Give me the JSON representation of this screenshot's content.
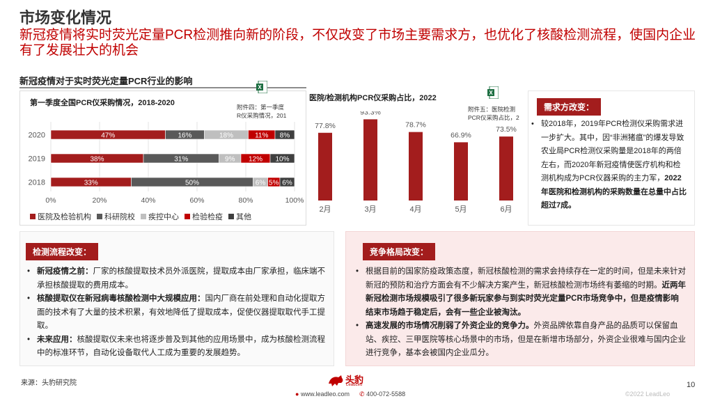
{
  "page": {
    "title": "市场变化情况",
    "subtitle": "新冠疫情将实时荧光定量PCR检测推向新的阶段，不仅改变了市场主要需求方，也优化了核酸检测流程，使国内企业有了发展壮大的机会",
    "section_title": "新冠疫情对于实时荧光定量PCR行业的影响",
    "page_number": "10"
  },
  "chart_left_title": "第一季度全国PCR仪采购情况，2018-2020",
  "chart_right_title": "医院/检测机构PCR仪采购占比，2022",
  "attachments": {
    "left": {
      "line1": "附件四：第一季度",
      "line2": "R仪采购情况，201"
    },
    "right": {
      "line1": "附件五：医院检测",
      "line2": "PCR仪采购占比，2"
    }
  },
  "colors": {
    "accent": "#a31d1d",
    "hospital": "#a31d1d",
    "research": "#595959",
    "cdc": "#bfbfbf",
    "inspection": "#c00000",
    "other": "#3f3f3f"
  },
  "chart_data": [
    {
      "type": "bar",
      "orientation": "horizontal",
      "stacked": true,
      "categories": [
        "2020",
        "2019",
        "2018"
      ],
      "series": [
        {
          "name": "医院及检验机构",
          "values": [
            47,
            38,
            33
          ],
          "labels": [
            "47%",
            "38%",
            "33%"
          ]
        },
        {
          "name": "科研院校",
          "values": [
            16,
            31,
            50
          ],
          "labels": [
            "16%",
            "31%",
            "50%"
          ]
        },
        {
          "name": "疾控中心",
          "values": [
            18,
            9,
            6
          ],
          "labels": [
            "18%",
            "9%",
            "6%"
          ]
        },
        {
          "name": "检验检疫",
          "values": [
            11,
            12,
            5
          ],
          "labels": [
            "11%",
            "12%",
            "5%"
          ]
        },
        {
          "name": "其他",
          "values": [
            8,
            10,
            6
          ],
          "labels": [
            "8%",
            "10%",
            "6%"
          ]
        }
      ],
      "xticks": [
        "0%",
        "20%",
        "40%",
        "60%",
        "80%",
        "100%"
      ],
      "xlim": [
        0,
        100
      ],
      "legend": "bottom"
    },
    {
      "type": "bar",
      "categories": [
        "2月",
        "3月",
        "4月",
        "5月",
        "6月"
      ],
      "values": [
        77.8,
        93.3,
        78.7,
        66.9,
        73.5
      ],
      "labels": [
        "77.8%",
        "93.3%",
        "78.7%",
        "66.9%",
        "73.5%"
      ],
      "ylim": [
        0,
        100
      ]
    }
  ],
  "demand": {
    "tag": "需求方改变：",
    "text_normal": "较2018年，2019年PCR检测仪采购需求进一步扩大。其中，因“非洲猪瘟”的爆发导致农业局PCR检测仪采购量是2018年的两倍左右，而2020年新冠疫情使医疗机构和检测机构成为PCR仪器采购的主力军，",
    "text_bold": "2022年医院和检测机构的采购数量在总量中占比超过7成。"
  },
  "process": {
    "tag": "检测流程改变：",
    "items": [
      {
        "bold": "新冠疫情之前：",
        "text": "厂家的核酸提取技术员外派医院，提取成本由厂家承担，临床端不承担核酸提取的费用成本。"
      },
      {
        "bold": "核酸提取仪在新冠病毒核酸检测中大规模应用：",
        "text": "国内厂商在前处理和自动化提取方面的技术有了大量的技术积累，有效地降低了提取成本，促使仪器提取取代手工提取。"
      },
      {
        "bold": "未来应用：",
        "text": "核酸提取仪未来也将逐步普及到其他的应用场景中，成为核酸检测流程中的标准环节，自动化设备取代人工成为重要的发展趋势。"
      }
    ]
  },
  "competition": {
    "tag": "竞争格局改变：",
    "item1_normal": "根据目前的国家防疫政策态度，新冠核酸检测的需求会持续存在一定的时间，但是未来针对新冠的预防和治疗方面会有不少解决方案产生，新冠核酸检测市场终有萎缩的时期。",
    "item1_bold": "近两年新冠检测市场规模吸引了很多新玩家参与到实时荧光定量PCR市场竞争中，但是疫情影响结束市场趋于稳定后，会有一些企业被淘汰。",
    "item2_bold": "高速发展的市场情况削弱了外资企业的竞争力。",
    "item2_normal": "外资品牌依靠自身产品的品质可以保留血站、疾控、三甲医院等核心场景中的市场，但是在新增市场部分，外资企业很难与国内企业进行竞争，基本会被国内企业瓜分。"
  },
  "footer": {
    "source": "来源：头豹研究院",
    "logo_cn": "头豹",
    "logo_en": "LeadLeo",
    "website": "www.leadleo.com",
    "phone": "400-072-5588",
    "copyright": "©2022 LeadLeo"
  }
}
